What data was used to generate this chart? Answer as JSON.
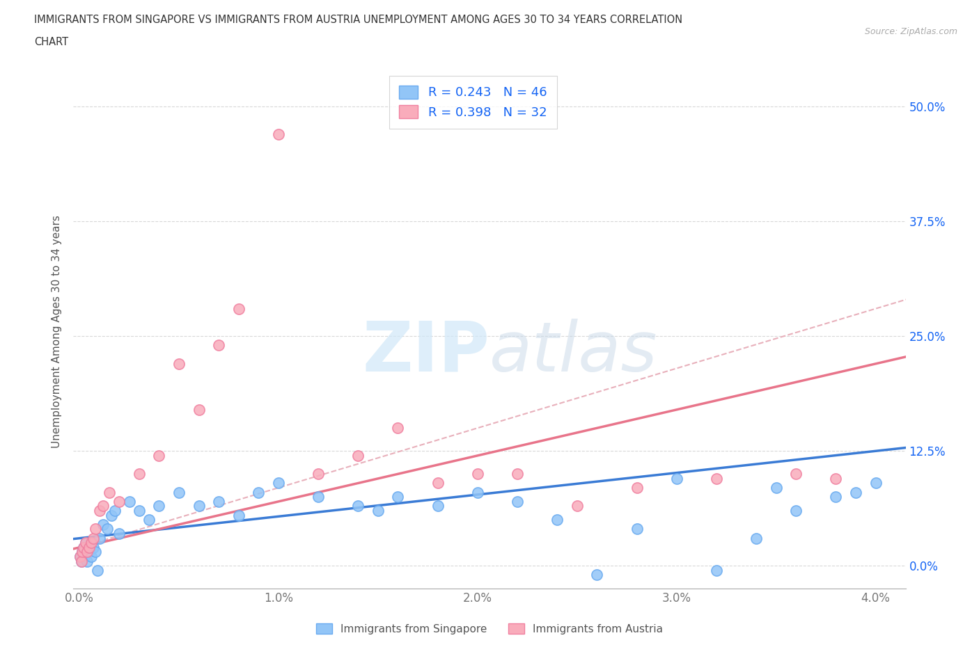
{
  "title_line1": "IMMIGRANTS FROM SINGAPORE VS IMMIGRANTS FROM AUSTRIA UNEMPLOYMENT AMONG AGES 30 TO 34 YEARS CORRELATION",
  "title_line2": "CHART",
  "source": "Source: ZipAtlas.com",
  "ylabel": "Unemployment Among Ages 30 to 34 years",
  "xlim": [
    -0.0003,
    0.0415
  ],
  "ylim": [
    -0.025,
    0.535
  ],
  "xticks": [
    0.0,
    0.01,
    0.02,
    0.03,
    0.04
  ],
  "xtick_labels": [
    "0.0%",
    "1.0%",
    "2.0%",
    "3.0%",
    "4.0%"
  ],
  "yticks": [
    0.0,
    0.125,
    0.25,
    0.375,
    0.5
  ],
  "ytick_labels": [
    "0.0%",
    "12.5%",
    "25.0%",
    "37.5%",
    "50.0%"
  ],
  "singapore_color": "#92C5F7",
  "austria_color": "#F9ACBB",
  "singapore_edge": "#6AABF0",
  "austria_edge": "#F080A0",
  "singapore_label": "Immigrants from Singapore",
  "austria_label": "Immigrants from Austria",
  "R_singapore": 0.243,
  "N_singapore": 46,
  "R_austria": 0.398,
  "N_austria": 32,
  "legend_color": "#1464F4",
  "trend_blue_color": "#3A7BD5",
  "trend_pink_color": "#E8748A",
  "trend_dashed_color": "#E8B0BB",
  "watermark": "ZIPatlas",
  "background_color": "#ffffff",
  "grid_color": "#d8d8d8",
  "sg_x": [
    5e-05,
    0.0001,
    0.00015,
    0.0002,
    0.00025,
    0.0003,
    0.0004,
    0.0005,
    0.0006,
    0.0007,
    0.0008,
    0.0009,
    0.001,
    0.0012,
    0.0014,
    0.0016,
    0.0018,
    0.002,
    0.0025,
    0.003,
    0.0035,
    0.004,
    0.005,
    0.006,
    0.007,
    0.008,
    0.009,
    0.01,
    0.012,
    0.014,
    0.015,
    0.016,
    0.018,
    0.02,
    0.022,
    0.024,
    0.026,
    0.028,
    0.03,
    0.032,
    0.034,
    0.035,
    0.036,
    0.038,
    0.039,
    0.04
  ],
  "sg_y": [
    0.01,
    0.005,
    0.015,
    0.02,
    0.01,
    0.025,
    0.005,
    0.015,
    0.01,
    0.02,
    0.015,
    -0.005,
    0.03,
    0.045,
    0.04,
    0.055,
    0.06,
    0.035,
    0.07,
    0.06,
    0.05,
    0.065,
    0.08,
    0.065,
    0.07,
    0.055,
    0.08,
    0.09,
    0.075,
    0.065,
    0.06,
    0.075,
    0.065,
    0.08,
    0.07,
    0.05,
    -0.01,
    0.04,
    0.095,
    -0.005,
    0.03,
    0.085,
    0.06,
    0.075,
    0.08,
    0.09
  ],
  "at_x": [
    5e-05,
    0.0001,
    0.00015,
    0.0002,
    0.0003,
    0.0004,
    0.0005,
    0.0006,
    0.0007,
    0.0008,
    0.001,
    0.0012,
    0.0015,
    0.002,
    0.003,
    0.004,
    0.005,
    0.006,
    0.007,
    0.008,
    0.01,
    0.012,
    0.014,
    0.016,
    0.018,
    0.02,
    0.022,
    0.025,
    0.028,
    0.032,
    0.036,
    0.038
  ],
  "at_y": [
    0.01,
    0.005,
    0.015,
    0.02,
    0.025,
    0.015,
    0.02,
    0.025,
    0.03,
    0.04,
    0.06,
    0.065,
    0.08,
    0.07,
    0.1,
    0.12,
    0.22,
    0.17,
    0.24,
    0.28,
    0.47,
    0.1,
    0.12,
    0.15,
    0.09,
    0.1,
    0.1,
    0.065,
    0.085,
    0.095,
    0.1,
    0.095
  ]
}
